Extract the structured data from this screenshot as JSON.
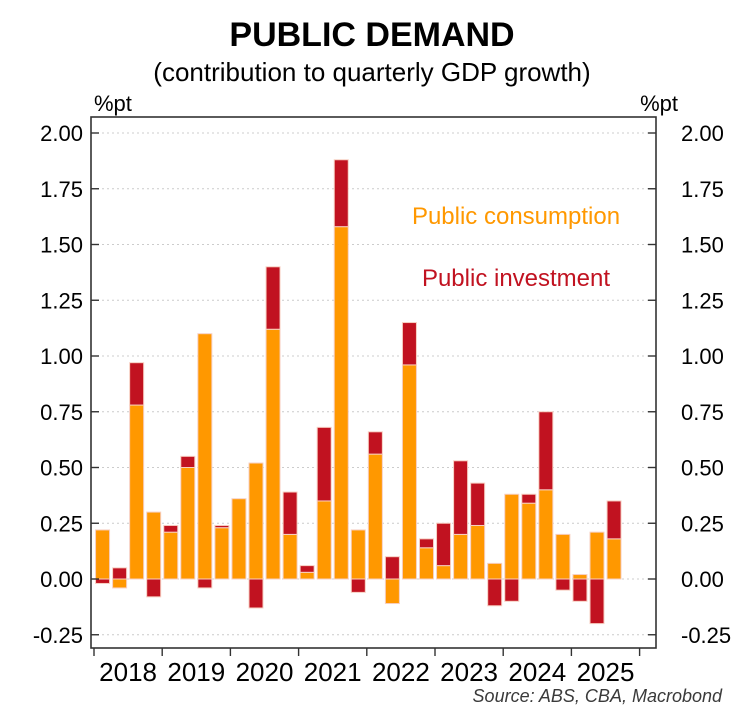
{
  "title": "PUBLIC DEMAND",
  "subtitle": "(contribution to quarterly GDP growth)",
  "unit_label_left": "%pt",
  "unit_label_right": "%pt",
  "source": "Source: ABS, CBA, Macrobond",
  "colors": {
    "consumption_orange": "#FF9800",
    "investment_red": "#C11220",
    "axis_frame": "#333333",
    "gridline": "#cccccc",
    "bar_outline": "#f7cfc2",
    "source_text": "#3a3a3a"
  },
  "legend": {
    "consumption_label": "Public consumption",
    "investment_label": "Public investment"
  },
  "chart_data": {
    "type": "bar",
    "stacked": true,
    "title": "PUBLIC DEMAND",
    "subtitle": "(contribution to quarterly GDP growth)",
    "ylabel_left": "%pt",
    "ylabel_right": "%pt",
    "grid": "horizontal-dashed",
    "legend_position": "inside-top-right",
    "ylim": [
      -0.31,
      2.08
    ],
    "yticks": [
      -0.25,
      0.0,
      0.25,
      0.5,
      0.75,
      1.0,
      1.25,
      1.5,
      1.75,
      2.0
    ],
    "ytick_labels": [
      "-0.25",
      "0.00",
      "0.25",
      "0.50",
      "0.75",
      "1.00",
      "1.25",
      "1.50",
      "1.75",
      "2.00"
    ],
    "x_year_labels": [
      "2018",
      "2019",
      "2020",
      "2021",
      "2022",
      "2023",
      "2024",
      "2025"
    ],
    "categories": [
      "2018 Q1",
      "2018 Q2",
      "2018 Q3",
      "2018 Q4",
      "2019 Q1",
      "2019 Q2",
      "2019 Q3",
      "2019 Q4",
      "2020 Q1",
      "2020 Q2",
      "2020 Q3",
      "2020 Q4",
      "2021 Q1",
      "2021 Q2",
      "2021 Q3",
      "2021 Q4",
      "2022 Q1",
      "2022 Q2",
      "2022 Q3",
      "2022 Q4",
      "2023 Q1",
      "2023 Q2",
      "2023 Q3",
      "2023 Q4",
      "2024 Q1",
      "2024 Q2",
      "2024 Q3",
      "2024 Q4",
      "2025 Q1",
      "2025 Q2",
      "2025 Q3"
    ],
    "series": [
      {
        "name": "Public consumption",
        "color": "#FF9800",
        "values": [
          0.22,
          -0.04,
          0.78,
          0.3,
          0.21,
          0.5,
          1.1,
          0.23,
          0.36,
          0.52,
          1.12,
          0.2,
          0.03,
          0.35,
          1.58,
          0.22,
          0.56,
          -0.11,
          0.96,
          0.14,
          0.06,
          0.2,
          0.24,
          0.07,
          0.38,
          0.34,
          0.4,
          0.2,
          0.02,
          0.21,
          0.18
        ]
      },
      {
        "name": "Public investment",
        "color": "#C11220",
        "values": [
          -0.02,
          0.05,
          0.19,
          -0.08,
          0.03,
          0.05,
          -0.04,
          0.01,
          0.0,
          -0.13,
          0.28,
          0.19,
          0.03,
          0.33,
          0.3,
          -0.06,
          0.1,
          0.1,
          0.19,
          0.04,
          0.19,
          0.33,
          0.19,
          -0.12,
          -0.1,
          0.04,
          0.35,
          -0.05,
          -0.1,
          -0.2,
          0.17
        ]
      }
    ]
  }
}
